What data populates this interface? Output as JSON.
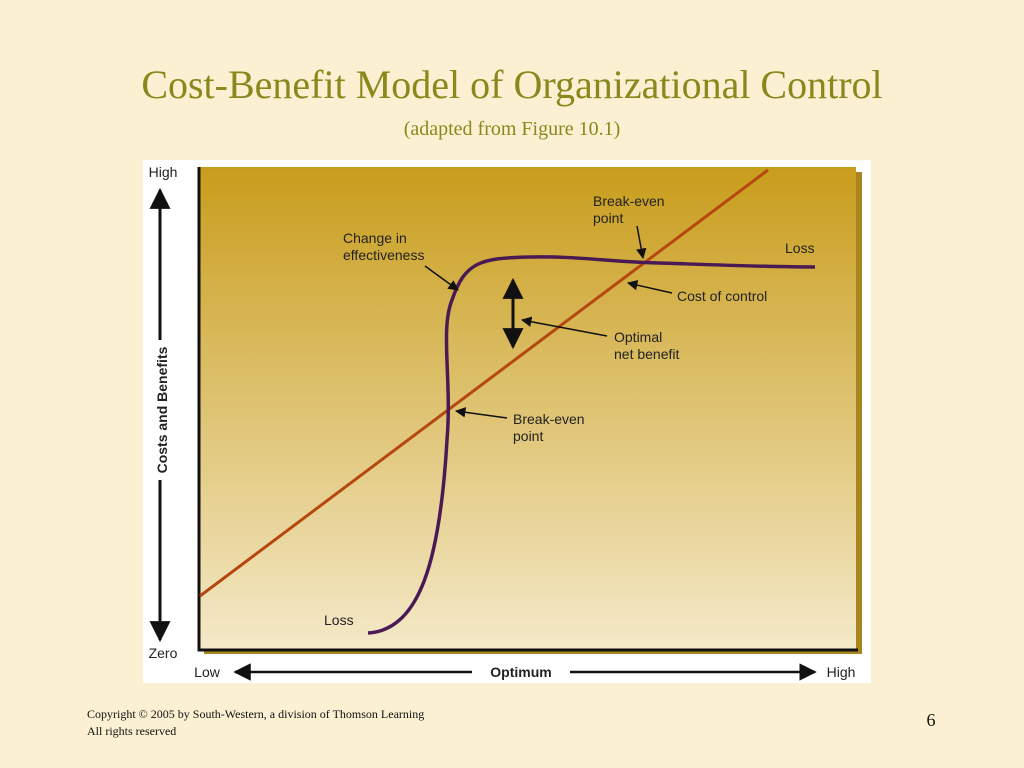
{
  "title": "Cost-Benefit Model of Organizational Control",
  "subtitle": "(adapted from Figure 10.1)",
  "figure": {
    "y_axis": {
      "label": "Costs and Benefits",
      "high": "High",
      "low": "Zero"
    },
    "x_axis": {
      "low": "Low",
      "middle": "Optimum",
      "high": "High"
    },
    "annotations": {
      "change": [
        "Change in",
        "effectiveness"
      ],
      "break_even_upper": [
        "Break-even",
        "point"
      ],
      "loss_right": "Loss",
      "cost_of_control": "Cost of control",
      "optimal": [
        "Optimal",
        "net benefit"
      ],
      "break_even_lower": [
        "Break-even",
        "point"
      ],
      "loss_left": "Loss"
    }
  },
  "footer": {
    "copyright": [
      "Copyright © 2005 by South-Western, a division of Thomson Learning",
      "All rights reserved"
    ],
    "page": "6"
  }
}
